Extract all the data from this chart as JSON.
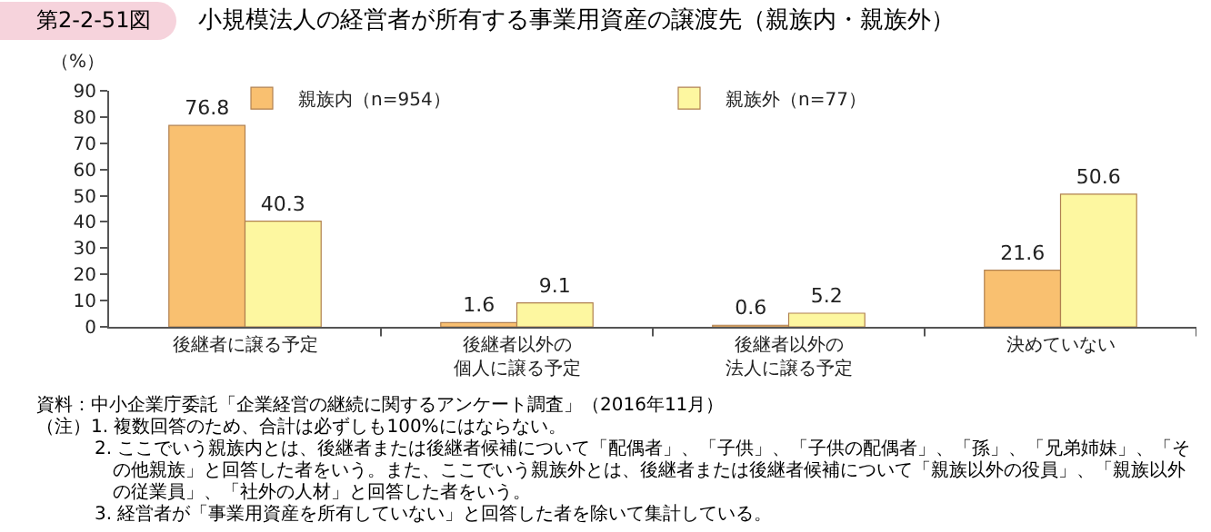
{
  "chart_data": {
    "type": "bar",
    "title": "小規模法人の経営者が所有する事業用資産の譲渡先（親族内・親族外）",
    "ylabel": "（%）",
    "categories": [
      "後継者に譲る予定",
      "後継者以外の個人に譲る予定",
      "後継者以外の法人に譲る予定",
      "決めていない"
    ],
    "series": [
      {
        "name": "親族内（n=954）",
        "color": "#f9c070",
        "values": [
          76.8,
          1.6,
          0.6,
          21.6
        ]
      },
      {
        "name": "親族外（n=77）",
        "color": "#fdf7a0",
        "values": [
          40.3,
          9.1,
          5.2,
          50.6
        ]
      }
    ],
    "ylim": [
      0,
      90
    ],
    "yticks": [
      0,
      10,
      20,
      30,
      40,
      50,
      60,
      70,
      80,
      90
    ],
    "grid": false,
    "legend": "top",
    "data_labels": true,
    "annotations": [
      "第2-2-51図",
      "資料：中小企業庁委託「企業経営の継続に関するアンケート調査」（2016年11月）",
      "（注）1. 複数回答のため、合計は必ずしも100%にはならない。",
      "2. ここでいう親族内とは、後継者または後継者候補について「配偶者」、「子供」、「子供の配偶者」、「孫」、「兄弟姉妹」、「その他親族」と回答した者をいう。また、ここでいう親族外とは、後継者または後継者候補について「親族以外の役員」、「親族以外の従業員」、「社外の人材」と回答した者をいう。",
      "3. 経営者が「事業用資産を所有していない」と回答した者を除いて集計している。"
    ]
  }
}
